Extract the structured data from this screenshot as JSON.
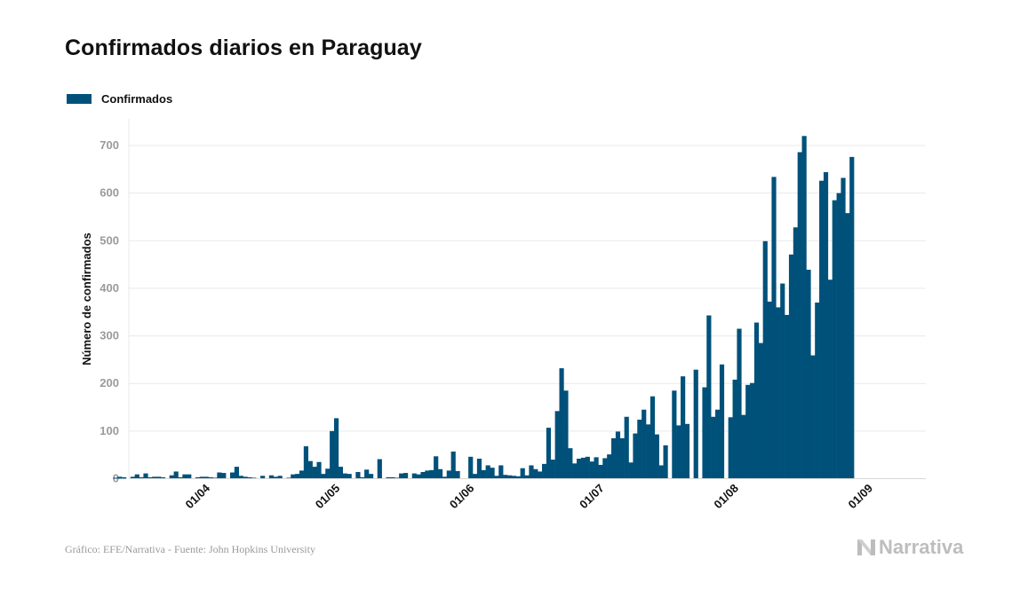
{
  "title": "Confirmados diarios en Paraguay",
  "footer": {
    "source": "Gráfico: EFE/Narrativa - Fuente: John Hopkins University",
    "brand": "Narrativa"
  },
  "colors": {
    "bar": "#00517a",
    "grid": "#e9e9e9",
    "tick": "#9a9a9a",
    "text": "#111111"
  },
  "chart_data": {
    "type": "bar",
    "title": "Confirmados diarios en Paraguay",
    "ylabel": "Número de confirmados",
    "xlabel": "",
    "ylim": [
      0,
      750
    ],
    "yticks": [
      0,
      100,
      200,
      300,
      400,
      500,
      600,
      700
    ],
    "grid": true,
    "legend_position": "top-left",
    "x_start": "2020-03-10",
    "xticks": [
      {
        "label": "01/04",
        "date": "2020-04-01"
      },
      {
        "label": "01/05",
        "date": "2020-05-01"
      },
      {
        "label": "01/06",
        "date": "2020-06-01"
      },
      {
        "label": "01/07",
        "date": "2020-07-01"
      },
      {
        "label": "01/08",
        "date": "2020-08-01"
      },
      {
        "label": "01/09",
        "date": "2020-09-01"
      }
    ],
    "series": [
      {
        "name": "Confirmados",
        "values": [
          2,
          4,
          3,
          0,
          4,
          9,
          3,
          11,
          3,
          4,
          4,
          3,
          0,
          7,
          15,
          3,
          9,
          9,
          0,
          3,
          4,
          4,
          3,
          2,
          13,
          12,
          0,
          13,
          25,
          6,
          4,
          3,
          2,
          0,
          6,
          0,
          7,
          4,
          6,
          0,
          2,
          9,
          10,
          17,
          68,
          37,
          25,
          35,
          10,
          21,
          100,
          127,
          25,
          11,
          10,
          0,
          14,
          3,
          19,
          10,
          1,
          41,
          0,
          3,
          3,
          2,
          11,
          12,
          0,
          11,
          9,
          14,
          17,
          18,
          47,
          20,
          4,
          17,
          57,
          16,
          0,
          0,
          46,
          10,
          42,
          18,
          28,
          23,
          6,
          28,
          8,
          7,
          6,
          5,
          22,
          7,
          28,
          20,
          15,
          31,
          107,
          40,
          142,
          232,
          185,
          64,
          32,
          42,
          44,
          46,
          36,
          45,
          29,
          43,
          51,
          85,
          99,
          85,
          130,
          34,
          95,
          124,
          145,
          114,
          173,
          93,
          28,
          70,
          0,
          185,
          112,
          215,
          115,
          0,
          229,
          0,
          192,
          343,
          130,
          145,
          240,
          0,
          129,
          208,
          315,
          134,
          197,
          201,
          328,
          285,
          499,
          372,
          634,
          360,
          410,
          344,
          471,
          528,
          686,
          720,
          439,
          259,
          370,
          626,
          644,
          418,
          585,
          600,
          632,
          558,
          676
        ]
      }
    ]
  }
}
